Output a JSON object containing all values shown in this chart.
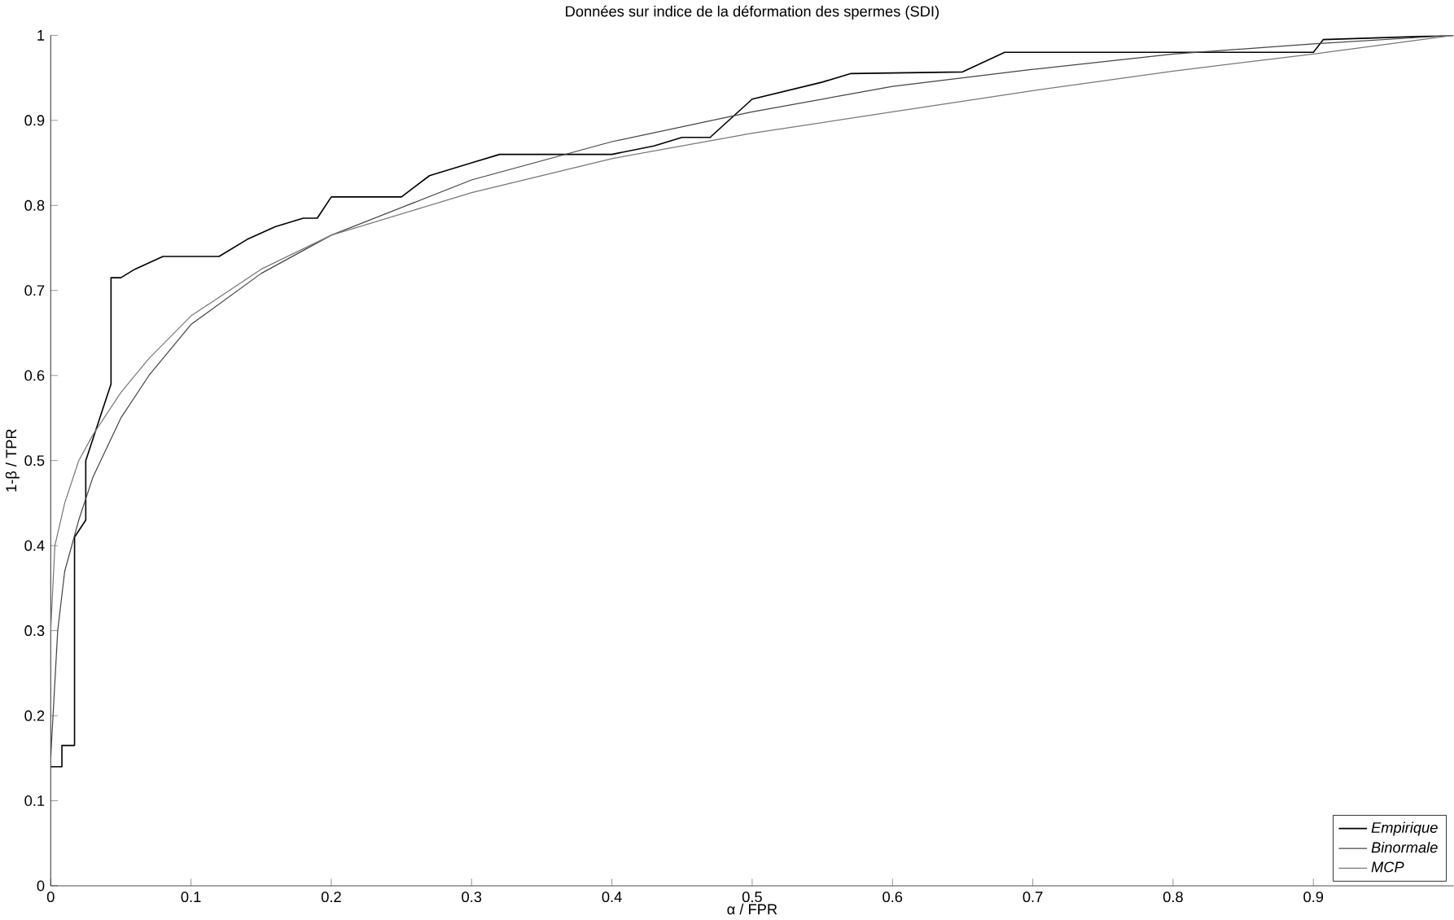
{
  "chart_data": {
    "type": "line",
    "title": "Données sur indice de la déformation des spermes (SDI)",
    "xlabel": "α / FPR",
    "ylabel": "1-β / TPR",
    "xlim": [
      0,
      1
    ],
    "ylim": [
      0,
      1
    ],
    "xticks": [
      0,
      0.1,
      0.2,
      0.3,
      0.4,
      0.5,
      0.6,
      0.7,
      0.8,
      0.9
    ],
    "yticks": [
      0,
      0.1,
      0.2,
      0.3,
      0.4,
      0.5,
      0.6,
      0.7,
      0.8,
      0.9,
      1
    ],
    "legend": "bottom right",
    "grid": false,
    "marker": "none",
    "line_style": "solid",
    "series": [
      {
        "name": "Empirique",
        "color": "#000000",
        "x": [
          0,
          0.008,
          0.008,
          0.017,
          0.017,
          0.025,
          0.025,
          0.035,
          0.043,
          0.043,
          0.05,
          0.06,
          0.08,
          0.12,
          0.14,
          0.16,
          0.18,
          0.19,
          0.2,
          0.25,
          0.27,
          0.3,
          0.32,
          0.35,
          0.4,
          0.43,
          0.45,
          0.47,
          0.5,
          0.55,
          0.57,
          0.65,
          0.68,
          0.9,
          0.907,
          1
        ],
        "values": [
          0.14,
          0.14,
          0.165,
          0.165,
          0.41,
          0.43,
          0.5,
          0.55,
          0.59,
          0.715,
          0.715,
          0.725,
          0.74,
          0.74,
          0.76,
          0.775,
          0.785,
          0.785,
          0.81,
          0.81,
          0.835,
          0.85,
          0.86,
          0.86,
          0.86,
          0.87,
          0.88,
          0.88,
          0.925,
          0.945,
          0.955,
          0.957,
          0.98,
          0.98,
          0.995,
          1
        ]
      },
      {
        "name": "Binormale",
        "color": "#444444",
        "x": [
          0,
          0.005,
          0.01,
          0.02,
          0.03,
          0.05,
          0.07,
          0.1,
          0.15,
          0.2,
          0.3,
          0.4,
          0.5,
          0.6,
          0.7,
          0.8,
          0.9,
          1
        ],
        "values": [
          0.15,
          0.3,
          0.37,
          0.43,
          0.48,
          0.55,
          0.6,
          0.66,
          0.72,
          0.765,
          0.83,
          0.875,
          0.91,
          0.94,
          0.96,
          0.978,
          0.99,
          1
        ]
      },
      {
        "name": "MCP",
        "color": "#777777",
        "x": [
          0,
          0.003,
          0.01,
          0.02,
          0.03,
          0.05,
          0.07,
          0.1,
          0.15,
          0.2,
          0.3,
          0.4,
          0.5,
          0.6,
          0.7,
          0.8,
          0.9,
          1
        ],
        "values": [
          0.3,
          0.4,
          0.45,
          0.5,
          0.53,
          0.58,
          0.62,
          0.67,
          0.725,
          0.765,
          0.815,
          0.855,
          0.885,
          0.91,
          0.935,
          0.958,
          0.978,
          1
        ]
      }
    ]
  }
}
